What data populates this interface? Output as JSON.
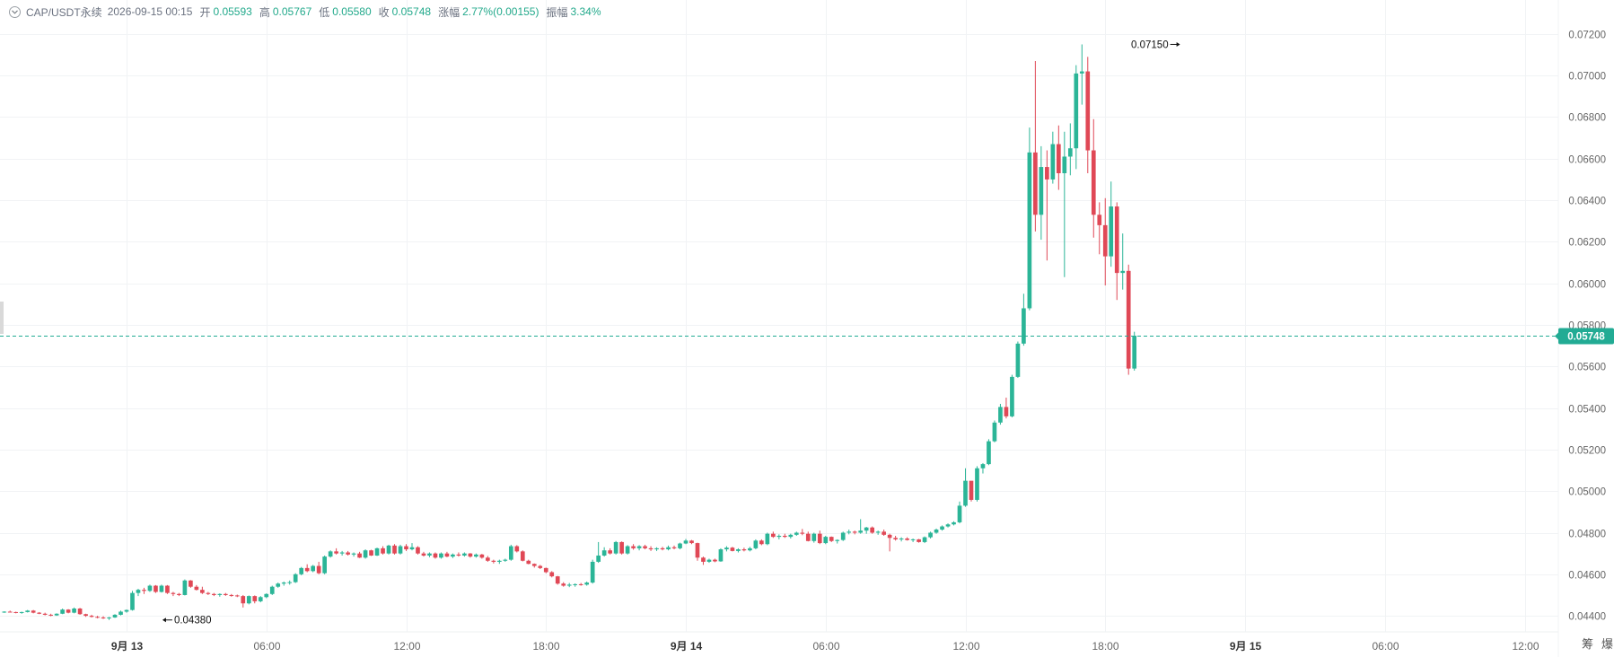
{
  "legend": {
    "symbol": "CAP/USDT永续",
    "time": "2026-09-15 00:15",
    "open_label": "开",
    "open": "0.05593",
    "high_label": "高",
    "high": "0.05767",
    "low_label": "低",
    "low": "0.05580",
    "close_label": "收",
    "close": "0.05748",
    "change_label": "涨幅",
    "change": "2.77%(0.00155)",
    "amplitude_label": "振幅",
    "amplitude": "3.34%"
  },
  "colors": {
    "up": "#2bb597",
    "down": "#e04856",
    "grid": "#f1f3f5",
    "axis_text": "#666666",
    "last_price": "#22ab94"
  },
  "toolbar": {
    "btn1": "筹",
    "btn2": "爆"
  },
  "chart_data": {
    "type": "candlestick",
    "interval_minutes": 15,
    "start_time": "2026-09-12 18:45",
    "ylim": [
      0.0434,
      0.0726
    ],
    "grid": true,
    "y_ticks": [
      "0.04400",
      "0.04600",
      "0.04800",
      "0.05000",
      "0.05200",
      "0.05400",
      "0.05600",
      "0.05800",
      "0.06000",
      "0.06200",
      "0.06400",
      "0.06600",
      "0.06800",
      "0.07000",
      "0.07200"
    ],
    "x_ticks": [
      {
        "label": "9月 13",
        "time": "2026-09-13 00:00",
        "bold": true
      },
      {
        "label": "06:00",
        "time": "2026-09-13 06:00"
      },
      {
        "label": "12:00",
        "time": "2026-09-13 12:00"
      },
      {
        "label": "18:00",
        "time": "2026-09-13 18:00"
      },
      {
        "label": "9月 14",
        "time": "2026-09-14 00:00",
        "bold": true
      },
      {
        "label": "06:00",
        "time": "2026-09-14 06:00"
      },
      {
        "label": "12:00",
        "time": "2026-09-14 12:00"
      },
      {
        "label": "18:00",
        "time": "2026-09-14 18:00"
      },
      {
        "label": "9月 15",
        "time": "2026-09-15 00:00",
        "bold": true
      },
      {
        "label": "06:00",
        "time": "2026-09-15 06:00"
      },
      {
        "label": "12:00",
        "time": "2026-09-15 12:00"
      }
    ],
    "last_price": "0.05748",
    "max_marker": {
      "label": "0.07150",
      "time": "2026-09-14 21:15",
      "value": 0.0715
    },
    "min_marker": {
      "label": "0.04380",
      "time": "2026-09-13 01:30",
      "value": 0.0438
    },
    "ohlc": [
      [
        0.04418,
        0.04422,
        0.04414,
        0.0442
      ],
      [
        0.0442,
        0.04425,
        0.04418,
        0.04418
      ],
      [
        0.04418,
        0.0442,
        0.04412,
        0.04415
      ],
      [
        0.04415,
        0.0442,
        0.0441,
        0.04418
      ],
      [
        0.04418,
        0.04428,
        0.04416,
        0.04425
      ],
      [
        0.04425,
        0.04428,
        0.04412,
        0.04415
      ],
      [
        0.04415,
        0.04418,
        0.04408,
        0.0441
      ],
      [
        0.0441,
        0.04415,
        0.04402,
        0.04405
      ],
      [
        0.04405,
        0.0441,
        0.04398,
        0.04402
      ],
      [
        0.04402,
        0.04412,
        0.044,
        0.0441
      ],
      [
        0.0441,
        0.04435,
        0.04408,
        0.0443
      ],
      [
        0.0443,
        0.04432,
        0.04412,
        0.04415
      ],
      [
        0.04415,
        0.0444,
        0.04412,
        0.04435
      ],
      [
        0.04435,
        0.04438,
        0.04405,
        0.04408
      ],
      [
        0.04408,
        0.0441,
        0.04395,
        0.044
      ],
      [
        0.044,
        0.04405,
        0.04392,
        0.04395
      ],
      [
        0.04395,
        0.044,
        0.04388,
        0.04392
      ],
      [
        0.04392,
        0.04398,
        0.04385,
        0.0439
      ],
      [
        0.0439,
        0.04395,
        0.0438,
        0.04392
      ],
      [
        0.04392,
        0.04408,
        0.0439,
        0.04405
      ],
      [
        0.04405,
        0.04425,
        0.04402,
        0.0442
      ],
      [
        0.0442,
        0.0443,
        0.04415,
        0.04428
      ],
      [
        0.04428,
        0.0452,
        0.04425,
        0.0451
      ],
      [
        0.0451,
        0.0453,
        0.04495,
        0.04525
      ],
      [
        0.04525,
        0.04535,
        0.04505,
        0.0452
      ],
      [
        0.0452,
        0.0455,
        0.04515,
        0.04545
      ],
      [
        0.04545,
        0.04548,
        0.0451,
        0.04515
      ],
      [
        0.04515,
        0.0455,
        0.04512,
        0.04545
      ],
      [
        0.04545,
        0.04548,
        0.04505,
        0.0451
      ],
      [
        0.0451,
        0.04515,
        0.04495,
        0.04505
      ],
      [
        0.04505,
        0.0451,
        0.04495,
        0.045
      ],
      [
        0.045,
        0.04575,
        0.04498,
        0.0457
      ],
      [
        0.0457,
        0.04572,
        0.04535,
        0.0454
      ],
      [
        0.0454,
        0.04548,
        0.04522,
        0.04525
      ],
      [
        0.04525,
        0.0454,
        0.04505,
        0.0451
      ],
      [
        0.0451,
        0.04515,
        0.045,
        0.04505
      ],
      [
        0.04505,
        0.0451,
        0.04495,
        0.045
      ],
      [
        0.045,
        0.04508,
        0.04492,
        0.04505
      ],
      [
        0.04505,
        0.0451,
        0.04496,
        0.045
      ],
      [
        0.045,
        0.04505,
        0.04492,
        0.04498
      ],
      [
        0.04498,
        0.04502,
        0.0449,
        0.04495
      ],
      [
        0.04495,
        0.045,
        0.0444,
        0.0446
      ],
      [
        0.0446,
        0.04498,
        0.04455,
        0.04495
      ],
      [
        0.04495,
        0.04498,
        0.0446,
        0.0447
      ],
      [
        0.0447,
        0.04495,
        0.04465,
        0.0449
      ],
      [
        0.0449,
        0.04508,
        0.04485,
        0.04505
      ],
      [
        0.04505,
        0.04545,
        0.045,
        0.0454
      ],
      [
        0.0454,
        0.0456,
        0.04535,
        0.04555
      ],
      [
        0.04555,
        0.04565,
        0.04545,
        0.0456
      ],
      [
        0.0456,
        0.0457,
        0.0455,
        0.04562
      ],
      [
        0.04562,
        0.04605,
        0.04558,
        0.046
      ],
      [
        0.046,
        0.04635,
        0.04595,
        0.0463
      ],
      [
        0.0463,
        0.04648,
        0.0461,
        0.04615
      ],
      [
        0.04615,
        0.04645,
        0.0461,
        0.0464
      ],
      [
        0.0464,
        0.0466,
        0.046,
        0.04605
      ],
      [
        0.04605,
        0.0469,
        0.046,
        0.04685
      ],
      [
        0.04685,
        0.04715,
        0.0468,
        0.0471
      ],
      [
        0.0471,
        0.04725,
        0.04695,
        0.047
      ],
      [
        0.047,
        0.04712,
        0.0469,
        0.04705
      ],
      [
        0.04705,
        0.04712,
        0.0469,
        0.04695
      ],
      [
        0.04695,
        0.04705,
        0.04685,
        0.047
      ],
      [
        0.047,
        0.04708,
        0.04678,
        0.0468
      ],
      [
        0.0468,
        0.0472,
        0.04675,
        0.04715
      ],
      [
        0.04715,
        0.04718,
        0.04688,
        0.0469
      ],
      [
        0.0469,
        0.04728,
        0.04688,
        0.04725
      ],
      [
        0.04725,
        0.04735,
        0.04695,
        0.047
      ],
      [
        0.047,
        0.04742,
        0.04695,
        0.04738
      ],
      [
        0.04738,
        0.04745,
        0.04695,
        0.047
      ],
      [
        0.047,
        0.04742,
        0.04695,
        0.04735
      ],
      [
        0.04735,
        0.04745,
        0.04712,
        0.0472
      ],
      [
        0.0472,
        0.0475,
        0.04715,
        0.0473
      ],
      [
        0.0473,
        0.04735,
        0.04695,
        0.047
      ],
      [
        0.047,
        0.04708,
        0.04685,
        0.0469
      ],
      [
        0.0469,
        0.04705,
        0.04682,
        0.047
      ],
      [
        0.047,
        0.04705,
        0.04675,
        0.0468
      ],
      [
        0.0468,
        0.04705,
        0.04675,
        0.047
      ],
      [
        0.047,
        0.04708,
        0.04682,
        0.04685
      ],
      [
        0.04685,
        0.047,
        0.04678,
        0.04695
      ],
      [
        0.04695,
        0.04705,
        0.04685,
        0.0469
      ],
      [
        0.0469,
        0.04705,
        0.04685,
        0.047
      ],
      [
        0.047,
        0.04702,
        0.0468,
        0.04685
      ],
      [
        0.04685,
        0.047,
        0.0468,
        0.04695
      ],
      [
        0.04695,
        0.04698,
        0.04675,
        0.0468
      ],
      [
        0.0468,
        0.04688,
        0.0466,
        0.04665
      ],
      [
        0.04665,
        0.0467,
        0.04652,
        0.0466
      ],
      [
        0.0466,
        0.0467,
        0.0465,
        0.04665
      ],
      [
        0.04665,
        0.04675,
        0.0466,
        0.0467
      ],
      [
        0.0467,
        0.04742,
        0.04665,
        0.04735
      ],
      [
        0.04735,
        0.0474,
        0.04705,
        0.0471
      ],
      [
        0.0471,
        0.04715,
        0.04662,
        0.04665
      ],
      [
        0.04665,
        0.0467,
        0.04648,
        0.0465
      ],
      [
        0.0465,
        0.04652,
        0.04632,
        0.0464
      ],
      [
        0.0464,
        0.04645,
        0.04625,
        0.0463
      ],
      [
        0.0463,
        0.04632,
        0.04605,
        0.0461
      ],
      [
        0.0461,
        0.04615,
        0.04585,
        0.0459
      ],
      [
        0.0459,
        0.04592,
        0.0455,
        0.04555
      ],
      [
        0.04555,
        0.04562,
        0.0454,
        0.04545
      ],
      [
        0.04545,
        0.04558,
        0.04538,
        0.0455
      ],
      [
        0.0455,
        0.04556,
        0.0454,
        0.04552
      ],
      [
        0.04552,
        0.04558,
        0.04545,
        0.0455
      ],
      [
        0.0455,
        0.04565,
        0.04545,
        0.0456
      ],
      [
        0.0456,
        0.0467,
        0.04555,
        0.0466
      ],
      [
        0.0466,
        0.04755,
        0.04655,
        0.0469
      ],
      [
        0.0469,
        0.0473,
        0.04685,
        0.04715
      ],
      [
        0.04715,
        0.04725,
        0.04695,
        0.047
      ],
      [
        0.047,
        0.0476,
        0.04695,
        0.04755
      ],
      [
        0.04755,
        0.04758,
        0.04695,
        0.047
      ],
      [
        0.047,
        0.0474,
        0.04695,
        0.04735
      ],
      [
        0.04735,
        0.04745,
        0.04718,
        0.04725
      ],
      [
        0.04725,
        0.0474,
        0.04715,
        0.04735
      ],
      [
        0.04735,
        0.04742,
        0.0472,
        0.04725
      ],
      [
        0.04725,
        0.04735,
        0.04712,
        0.0472
      ],
      [
        0.0472,
        0.0473,
        0.04712,
        0.04725
      ],
      [
        0.04725,
        0.04732,
        0.04715,
        0.0472
      ],
      [
        0.0472,
        0.04738,
        0.04715,
        0.0473
      ],
      [
        0.0473,
        0.04738,
        0.0472,
        0.04725
      ],
      [
        0.04725,
        0.04752,
        0.0472,
        0.04748
      ],
      [
        0.04748,
        0.0477,
        0.04745,
        0.04762
      ],
      [
        0.04762,
        0.04765,
        0.04745,
        0.0475
      ],
      [
        0.0475,
        0.04752,
        0.04665,
        0.0468
      ],
      [
        0.0468,
        0.04685,
        0.04645,
        0.0466
      ],
      [
        0.0466,
        0.04675,
        0.04655,
        0.0467
      ],
      [
        0.0467,
        0.04675,
        0.04658,
        0.04662
      ],
      [
        0.04662,
        0.04725,
        0.0466,
        0.0472
      ],
      [
        0.0472,
        0.04735,
        0.0471,
        0.04728
      ],
      [
        0.04728,
        0.04732,
        0.0471,
        0.04712
      ],
      [
        0.04712,
        0.04725,
        0.04705,
        0.0472
      ],
      [
        0.0472,
        0.04728,
        0.0471,
        0.04715
      ],
      [
        0.04715,
        0.04732,
        0.0471,
        0.04725
      ],
      [
        0.04725,
        0.04768,
        0.0472,
        0.04762
      ],
      [
        0.04762,
        0.04768,
        0.0474,
        0.04745
      ],
      [
        0.04745,
        0.048,
        0.0474,
        0.04795
      ],
      [
        0.04795,
        0.04805,
        0.04775,
        0.0478
      ],
      [
        0.0478,
        0.04792,
        0.04768,
        0.04785
      ],
      [
        0.04785,
        0.04795,
        0.04775,
        0.0478
      ],
      [
        0.0478,
        0.04795,
        0.04772,
        0.0479
      ],
      [
        0.0479,
        0.04805,
        0.04785,
        0.048
      ],
      [
        0.048,
        0.04818,
        0.04788,
        0.04795
      ],
      [
        0.04795,
        0.04805,
        0.04758,
        0.0476
      ],
      [
        0.0476,
        0.048,
        0.04752,
        0.04795
      ],
      [
        0.04795,
        0.0481,
        0.04745,
        0.0475
      ],
      [
        0.0475,
        0.04785,
        0.04745,
        0.0478
      ],
      [
        0.0478,
        0.04782,
        0.04755,
        0.0476
      ],
      [
        0.0476,
        0.04768,
        0.04748,
        0.04765
      ],
      [
        0.04765,
        0.04805,
        0.0476,
        0.048
      ],
      [
        0.048,
        0.04815,
        0.04792,
        0.04805
      ],
      [
        0.04805,
        0.0481,
        0.04792,
        0.048
      ],
      [
        0.048,
        0.04865,
        0.04795,
        0.0481
      ],
      [
        0.0481,
        0.04828,
        0.04795,
        0.04825
      ],
      [
        0.04825,
        0.0483,
        0.04795,
        0.048
      ],
      [
        0.048,
        0.0481,
        0.0479,
        0.04805
      ],
      [
        0.04805,
        0.04815,
        0.04785,
        0.0479
      ],
      [
        0.0479,
        0.04795,
        0.0471,
        0.04775
      ],
      [
        0.04775,
        0.04785,
        0.04762,
        0.04768
      ],
      [
        0.04768,
        0.04778,
        0.04758,
        0.04772
      ],
      [
        0.04772,
        0.04778,
        0.04762,
        0.04765
      ],
      [
        0.04765,
        0.04772,
        0.04755,
        0.04768
      ],
      [
        0.04768,
        0.0477,
        0.04752,
        0.04755
      ],
      [
        0.04755,
        0.04782,
        0.0475,
        0.04778
      ],
      [
        0.04778,
        0.04805,
        0.04772,
        0.048
      ],
      [
        0.048,
        0.0482,
        0.04795,
        0.04815
      ],
      [
        0.04815,
        0.04835,
        0.0481,
        0.0483
      ],
      [
        0.0483,
        0.04845,
        0.04825,
        0.0484
      ],
      [
        0.0484,
        0.04855,
        0.04835,
        0.0485
      ],
      [
        0.0485,
        0.0495,
        0.04845,
        0.0493
      ],
      [
        0.0493,
        0.0511,
        0.04925,
        0.0505
      ],
      [
        0.0505,
        0.0503,
        0.0495,
        0.04958
      ],
      [
        0.04958,
        0.0512,
        0.0495,
        0.0511
      ],
      [
        0.0511,
        0.05135,
        0.05085,
        0.0513
      ],
      [
        0.0513,
        0.0525,
        0.05125,
        0.0524
      ],
      [
        0.0524,
        0.0534,
        0.05235,
        0.0533
      ],
      [
        0.0533,
        0.0542,
        0.0532,
        0.05405
      ],
      [
        0.05405,
        0.0545,
        0.0535,
        0.0536
      ],
      [
        0.0536,
        0.0556,
        0.05355,
        0.0555
      ],
      [
        0.0555,
        0.0572,
        0.05545,
        0.0571
      ],
      [
        0.0571,
        0.0595,
        0.057,
        0.0588
      ],
      [
        0.0588,
        0.0675,
        0.0587,
        0.0663
      ],
      [
        0.0663,
        0.0707,
        0.0625,
        0.0633
      ],
      [
        0.0633,
        0.0666,
        0.0621,
        0.0656
      ],
      [
        0.0656,
        0.0664,
        0.0611,
        0.065
      ],
      [
        0.065,
        0.0673,
        0.0648,
        0.0667
      ],
      [
        0.0667,
        0.0676,
        0.0645,
        0.0653
      ],
      [
        0.0653,
        0.0673,
        0.0603,
        0.0661
      ],
      [
        0.0661,
        0.0677,
        0.0652,
        0.0665
      ],
      [
        0.0665,
        0.0705,
        0.0655,
        0.0701
      ],
      [
        0.0701,
        0.0715,
        0.0686,
        0.0702
      ],
      [
        0.0702,
        0.0709,
        0.0653,
        0.0664
      ],
      [
        0.0664,
        0.0679,
        0.0622,
        0.0633
      ],
      [
        0.0633,
        0.0639,
        0.0614,
        0.0628
      ],
      [
        0.0628,
        0.0641,
        0.0599,
        0.0613
      ],
      [
        0.0613,
        0.0649,
        0.0608,
        0.0637
      ],
      [
        0.0637,
        0.0639,
        0.0592,
        0.0605
      ],
      [
        0.0605,
        0.0624,
        0.0597,
        0.0606
      ],
      [
        0.0606,
        0.0609,
        0.0556,
        0.0559
      ],
      [
        0.0559,
        0.05767,
        0.0558,
        0.05748
      ]
    ]
  }
}
